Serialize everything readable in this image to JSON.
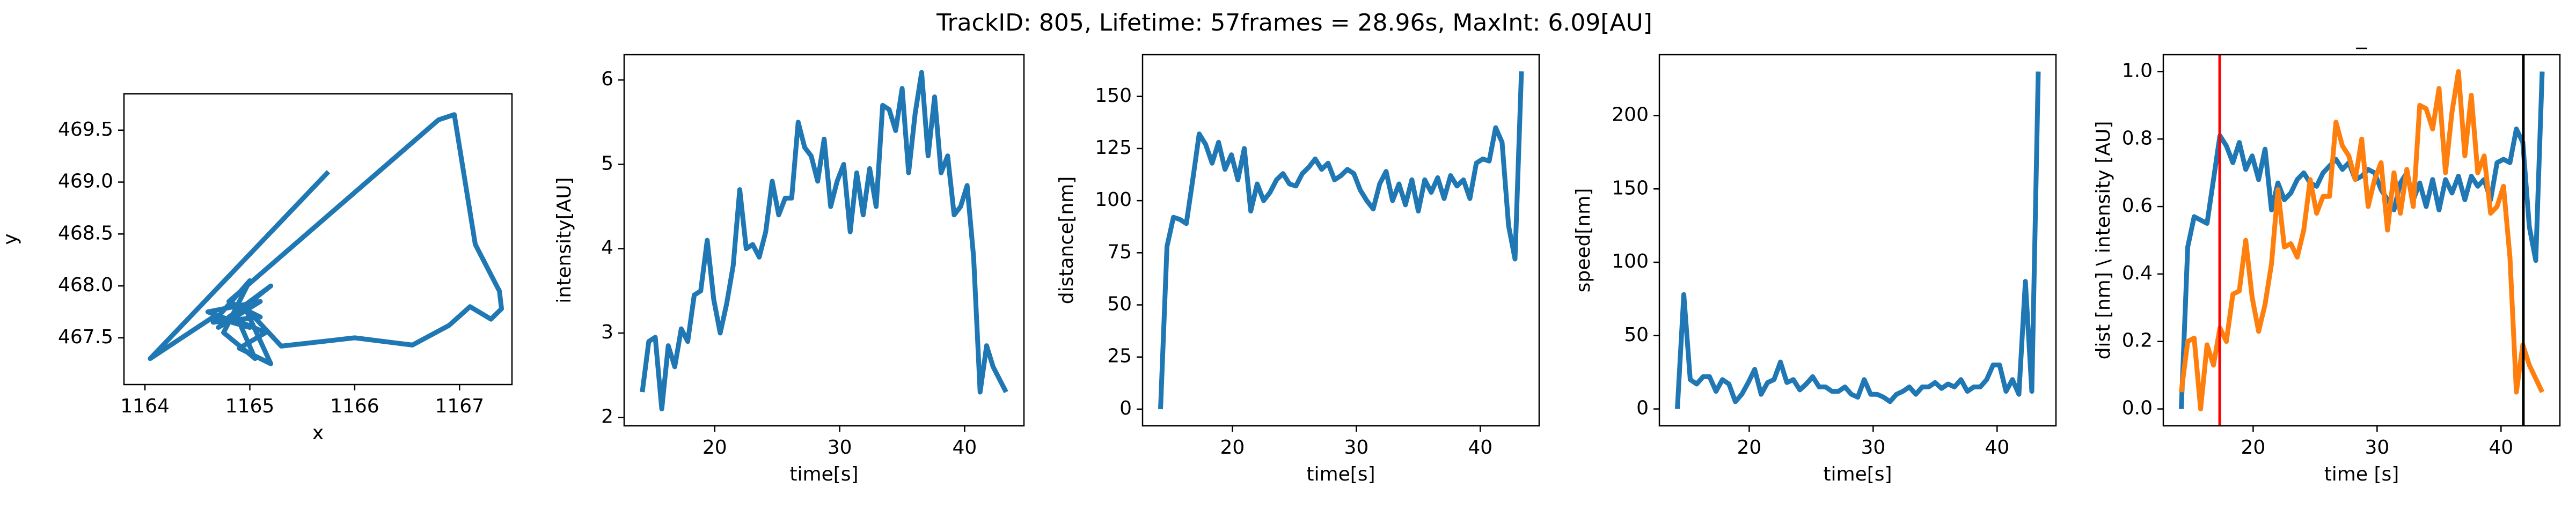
{
  "title": "TrackID: 805, Lifetime: 57frames = 28.96s, MaxInt: 6.09[AU]",
  "chart_data": [
    {
      "type": "line",
      "xlabel": "x",
      "ylabel": "y",
      "x": [
        1165.75,
        1164.05,
        1164.65,
        1165.0,
        1164.6,
        1165.1,
        1164.7,
        1165.2,
        1164.8,
        1165.15,
        1164.9,
        1165.2,
        1164.95,
        1165.3,
        1166.0,
        1166.55,
        1166.9,
        1167.1,
        1167.3,
        1167.4,
        1167.38,
        1167.15,
        1166.95,
        1166.8,
        1164.8,
        1165.1,
        1164.65,
        1165.0,
        1164.75,
        1165.05,
        1164.9
      ],
      "series": [
        {
          "color": "#1f77b4",
          "values": [
            469.1,
            467.3,
            467.7,
            467.6,
            467.75,
            467.85,
            467.6,
            468.0,
            467.7,
            467.55,
            467.4,
            467.25,
            467.8,
            467.42,
            467.5,
            467.43,
            467.62,
            467.8,
            467.68,
            467.78,
            467.95,
            468.4,
            469.65,
            469.6,
            467.85,
            467.7,
            467.65,
            468.05,
            467.55,
            467.3,
            467.65
          ]
        }
      ],
      "xlim": [
        1163.8,
        1167.5
      ],
      "xticks": [
        1164,
        1165,
        1166,
        1167
      ],
      "ylim": [
        467.05,
        469.85
      ],
      "yticks": [
        467.5,
        {
          "value": 468,
          "label": "468.0"
        },
        468.5,
        {
          "value": 469,
          "label": "469.0"
        },
        469.5
      ]
    },
    {
      "type": "line",
      "xlabel": "time[s]",
      "ylabel": "intensity[AU]",
      "x": [
        14.2,
        14.72,
        15.24,
        15.76,
        16.28,
        16.8,
        17.32,
        17.84,
        18.36,
        18.88,
        19.4,
        19.92,
        20.44,
        20.96,
        21.48,
        22.0,
        22.52,
        23.04,
        23.56,
        24.08,
        24.6,
        25.12,
        25.64,
        26.16,
        26.68,
        27.2,
        27.72,
        28.24,
        28.76,
        29.28,
        29.8,
        30.32,
        30.84,
        31.36,
        31.88,
        32.4,
        32.92,
        33.44,
        33.96,
        34.48,
        35.0,
        35.52,
        36.04,
        36.56,
        37.08,
        37.6,
        38.12,
        38.64,
        39.16,
        39.68,
        40.2,
        40.72,
        41.24,
        41.76,
        42.28,
        42.8,
        43.32
      ],
      "series": [
        {
          "color": "#1f77b4",
          "values": [
            2.3,
            2.9,
            2.95,
            2.1,
            2.85,
            2.6,
            3.05,
            2.9,
            3.45,
            3.5,
            4.1,
            3.4,
            3.0,
            3.35,
            3.8,
            4.7,
            4.0,
            4.05,
            3.9,
            4.2,
            4.8,
            4.4,
            4.6,
            4.6,
            5.5,
            5.2,
            5.1,
            4.8,
            5.3,
            4.5,
            4.8,
            5.0,
            4.2,
            4.9,
            4.4,
            4.95,
            4.5,
            5.7,
            5.65,
            5.4,
            5.9,
            4.9,
            5.6,
            6.09,
            5.1,
            5.8,
            4.9,
            5.1,
            4.4,
            4.5,
            4.75,
            3.9,
            2.3,
            2.85,
            2.6,
            2.45,
            2.3
          ]
        }
      ],
      "xlim": [
        12.75,
        44.75
      ],
      "xticks": [
        20,
        30,
        40
      ],
      "ylim": [
        1.9,
        6.3
      ],
      "yticks": [
        2,
        3,
        4,
        5,
        6
      ]
    },
    {
      "type": "line",
      "xlabel": "time[s]",
      "ylabel": "distance[nm]",
      "x": [
        14.2,
        14.72,
        15.24,
        15.76,
        16.28,
        16.8,
        17.32,
        17.84,
        18.36,
        18.88,
        19.4,
        19.92,
        20.44,
        20.96,
        21.48,
        22.0,
        22.52,
        23.04,
        23.56,
        24.08,
        24.6,
        25.12,
        25.64,
        26.16,
        26.68,
        27.2,
        27.72,
        28.24,
        28.76,
        29.28,
        29.8,
        30.32,
        30.84,
        31.36,
        31.88,
        32.4,
        32.92,
        33.44,
        33.96,
        34.48,
        35.0,
        35.52,
        36.04,
        36.56,
        37.08,
        37.6,
        38.12,
        38.64,
        39.16,
        39.68,
        40.2,
        40.72,
        41.24,
        41.76,
        42.28,
        42.8,
        43.32
      ],
      "series": [
        {
          "color": "#1f77b4",
          "values": [
            0,
            78,
            92,
            91,
            89,
            110,
            132,
            127,
            118,
            128,
            115,
            122,
            110,
            125,
            95,
            108,
            100,
            104,
            110,
            113,
            108,
            107,
            113,
            116,
            120,
            115,
            118,
            110,
            112,
            115,
            113,
            105,
            100,
            96,
            108,
            114,
            100,
            108,
            98,
            110,
            95,
            110,
            104,
            111,
            101,
            112,
            107,
            110,
            101,
            118,
            120,
            119,
            135,
            128,
            88,
            72,
            162
          ]
        }
      ],
      "xlim": [
        12.75,
        44.75
      ],
      "xticks": [
        20,
        30,
        40
      ],
      "ylim": [
        -8,
        170
      ],
      "yticks": [
        0,
        25,
        50,
        75,
        100,
        125,
        150
      ]
    },
    {
      "type": "line",
      "xlabel": "time[s]",
      "ylabel": "speed[nm]",
      "x": [
        14.2,
        14.72,
        15.24,
        15.76,
        16.28,
        16.8,
        17.32,
        17.84,
        18.36,
        18.88,
        19.4,
        19.92,
        20.44,
        20.96,
        21.48,
        22.0,
        22.52,
        23.04,
        23.56,
        24.08,
        24.6,
        25.12,
        25.64,
        26.16,
        26.68,
        27.2,
        27.72,
        28.24,
        28.76,
        29.28,
        29.8,
        30.32,
        30.84,
        31.36,
        31.88,
        32.4,
        32.92,
        33.44,
        33.96,
        34.48,
        35.0,
        35.52,
        36.04,
        36.56,
        37.08,
        37.6,
        38.12,
        38.64,
        39.16,
        39.68,
        40.2,
        40.72,
        41.24,
        41.76,
        42.28,
        42.8,
        43.32
      ],
      "series": [
        {
          "color": "#1f77b4",
          "values": [
            0,
            78,
            20,
            17,
            22,
            22,
            12,
            20,
            17,
            5,
            10,
            18,
            27,
            10,
            18,
            20,
            32,
            18,
            20,
            13,
            17,
            22,
            15,
            15,
            12,
            12,
            15,
            10,
            8,
            20,
            10,
            10,
            8,
            5,
            10,
            12,
            15,
            10,
            15,
            15,
            18,
            14,
            17,
            15,
            20,
            12,
            15,
            15,
            20,
            30,
            30,
            12,
            20,
            10,
            87,
            12,
            230
          ]
        }
      ],
      "xlim": [
        12.75,
        44.75
      ],
      "xticks": [
        20,
        30,
        40
      ],
      "ylim": [
        -11.5,
        241.5
      ],
      "yticks": [
        0,
        50,
        100,
        150,
        200
      ]
    },
    {
      "type": "line",
      "title": "_",
      "xlabel": "time [s]",
      "ylabel": "dist [nm] \\ intensity [AU]",
      "x": [
        14.2,
        14.72,
        15.24,
        15.76,
        16.28,
        16.8,
        17.32,
        17.84,
        18.36,
        18.88,
        19.4,
        19.92,
        20.44,
        20.96,
        21.48,
        22.0,
        22.52,
        23.04,
        23.56,
        24.08,
        24.6,
        25.12,
        25.64,
        26.16,
        26.68,
        27.2,
        27.72,
        28.24,
        28.76,
        29.28,
        29.8,
        30.32,
        30.84,
        31.36,
        31.88,
        32.4,
        32.92,
        33.44,
        33.96,
        34.48,
        35.0,
        35.52,
        36.04,
        36.56,
        37.08,
        37.6,
        38.12,
        38.64,
        39.16,
        39.68,
        40.2,
        40.72,
        41.24,
        41.76,
        42.28,
        42.8,
        43.32
      ],
      "series": [
        {
          "color": "#1f77b4",
          "values": [
            0,
            0.48,
            0.57,
            0.56,
            0.55,
            0.68,
            0.81,
            0.78,
            0.73,
            0.79,
            0.71,
            0.75,
            0.68,
            0.77,
            0.59,
            0.67,
            0.62,
            0.64,
            0.68,
            0.7,
            0.67,
            0.66,
            0.7,
            0.72,
            0.74,
            0.71,
            0.73,
            0.68,
            0.69,
            0.71,
            0.7,
            0.65,
            0.62,
            0.59,
            0.67,
            0.7,
            0.62,
            0.67,
            0.6,
            0.68,
            0.59,
            0.68,
            0.64,
            0.69,
            0.62,
            0.69,
            0.66,
            0.68,
            0.62,
            0.73,
            0.74,
            0.73,
            0.83,
            0.79,
            0.54,
            0.44,
            1.0
          ]
        },
        {
          "color": "#ff7f0e",
          "values": [
            0.05,
            0.2,
            0.21,
            0,
            0.19,
            0.13,
            0.24,
            0.2,
            0.34,
            0.35,
            0.5,
            0.33,
            0.23,
            0.31,
            0.43,
            0.65,
            0.48,
            0.49,
            0.45,
            0.53,
            0.68,
            0.58,
            0.63,
            0.63,
            0.85,
            0.78,
            0.75,
            0.68,
            0.8,
            0.6,
            0.68,
            0.73,
            0.53,
            0.7,
            0.58,
            0.71,
            0.6,
            0.9,
            0.89,
            0.83,
            0.95,
            0.7,
            0.88,
            1.0,
            0.75,
            0.93,
            0.7,
            0.75,
            0.58,
            0.6,
            0.66,
            0.45,
            0.05,
            0.19,
            0.13,
            0.09,
            0.05
          ]
        }
      ],
      "vlines": [
        {
          "x": 17.3,
          "color": "#ff0000"
        },
        {
          "x": 41.8,
          "color": "#000000"
        }
      ],
      "xlim": [
        12.75,
        44.75
      ],
      "xticks": [
        20,
        30,
        40
      ],
      "ylim": [
        -0.05,
        1.05
      ],
      "yticks": [
        {
          "value": 0,
          "label": "0.0"
        },
        0.2,
        0.4,
        0.6,
        0.8,
        {
          "value": 1,
          "label": "1.0"
        }
      ]
    }
  ]
}
